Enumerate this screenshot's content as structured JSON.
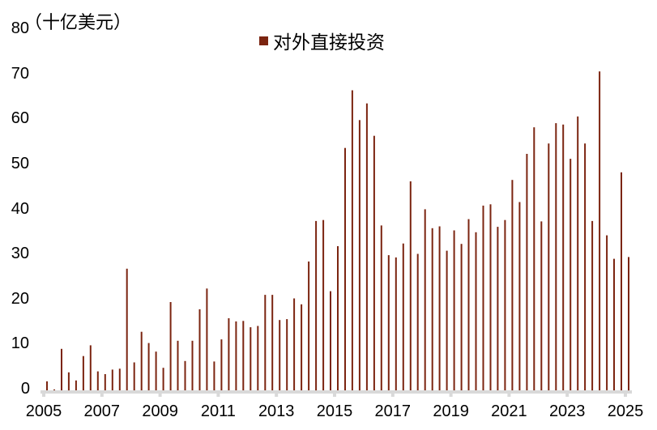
{
  "chart_data": {
    "type": "bar",
    "title": "",
    "unit_label": "（十亿美元）",
    "ylabel": "十亿美元",
    "xlabel": "",
    "ylim": [
      0,
      80
    ],
    "yticks": [
      0,
      10,
      20,
      30,
      40,
      50,
      60,
      70,
      80
    ],
    "xticks": [
      "2005",
      "2007",
      "2009",
      "2011",
      "2013",
      "2015",
      "2017",
      "2019",
      "2021",
      "2023",
      "2025"
    ],
    "grid": false,
    "legend_position": "top-center",
    "series": [
      {
        "name": "对外直接投资",
        "color": "#7B2410",
        "frequency": "quarterly",
        "values": [
          2.0,
          0.2,
          9.2,
          4.0,
          2.2,
          7.6,
          10.0,
          4.2,
          3.6,
          4.6,
          4.8,
          27.0,
          6.2,
          13.0,
          10.5,
          8.6,
          5.0,
          19.6,
          11.0,
          6.5,
          11.0,
          18.0,
          22.6,
          6.4,
          11.3,
          16.0,
          15.3,
          15.4,
          14.0,
          14.3,
          21.2,
          21.2,
          15.6,
          15.8,
          20.4,
          19.1,
          28.6,
          37.6,
          37.8,
          22.0,
          32.0,
          53.8,
          66.6,
          60.0,
          63.7,
          56.5,
          36.6,
          30.0,
          29.5,
          32.6,
          46.4,
          30.3,
          40.2,
          36.0,
          36.4,
          31.0,
          35.5,
          32.5,
          38.0,
          35.1,
          41.0,
          41.3,
          36.3,
          37.8,
          46.7,
          41.8,
          52.5,
          58.4,
          37.5,
          54.8,
          59.3,
          59.0,
          51.4,
          60.8,
          54.8,
          37.6,
          70.8,
          34.4,
          29.2,
          48.4,
          29.6
        ]
      }
    ],
    "categories_start": "2005Q1",
    "categories_end": "2025Q1"
  },
  "legend": {
    "label": "对外直接投资",
    "color": "#7B2410"
  },
  "axis_color": "#D9D9D9"
}
